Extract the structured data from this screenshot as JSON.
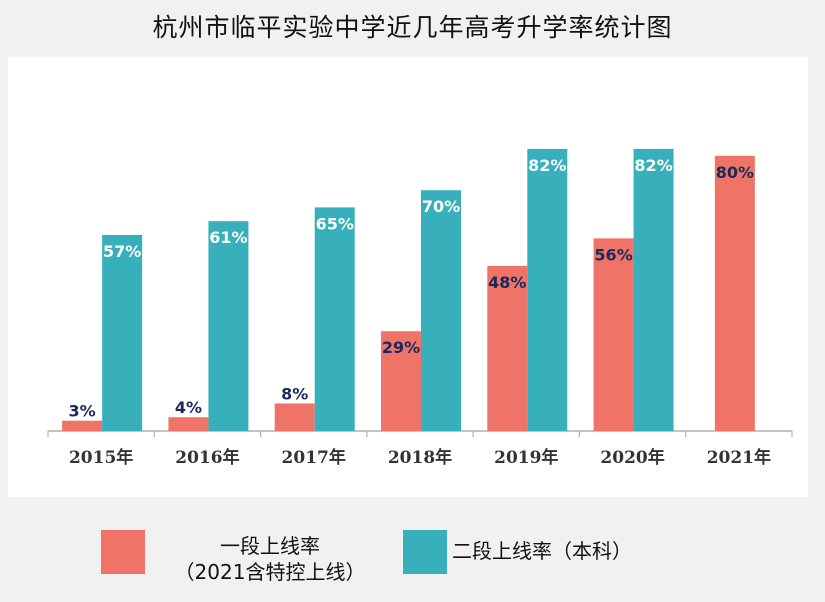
{
  "title": "杭州市临平实验中学近几年高考升学率统计图",
  "colors": {
    "series1": "#ef7467",
    "series2": "#37b0bc",
    "label_dark": "#1a2a5c",
    "label_light": "#ffffff"
  },
  "legend": {
    "series1_line1": "一段上线率",
    "series1_line2": "（2021含特控上线）",
    "series2": "二段上线率（本科）"
  },
  "chart_data": {
    "type": "bar",
    "title": "杭州市临平实验中学近几年高考升学率统计图",
    "categories": [
      "2015年",
      "2016年",
      "2017年",
      "2018年",
      "2019年",
      "2020年",
      "2021年"
    ],
    "series": [
      {
        "name": "一段上线率（2021含特控上线）",
        "values": [
          3,
          4,
          8,
          29,
          48,
          56,
          80
        ],
        "labels": [
          "3%",
          "4%",
          "8%",
          "29%",
          "48%",
          "56%",
          "80%"
        ]
      },
      {
        "name": "二段上线率（本科）",
        "values": [
          57,
          61,
          65,
          70,
          82,
          82,
          null
        ],
        "labels": [
          "57%",
          "61%",
          "65%",
          "70%",
          "82%",
          "82%",
          ""
        ]
      }
    ],
    "ylim": [
      0,
      100
    ],
    "grid": false,
    "legend_position": "bottom"
  }
}
